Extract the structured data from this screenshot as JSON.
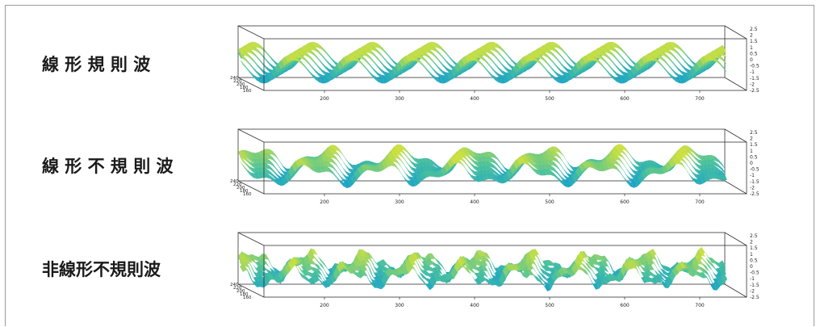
{
  "figure": {
    "panels": [
      {
        "label": "線 形 規 則 波",
        "x_ticks": [
          "200",
          "300",
          "400",
          "500",
          "600",
          "700"
        ],
        "z_ticks": [
          "2.5",
          "2",
          "1.5",
          "1",
          "0.5",
          "0",
          "-0.5",
          "-1",
          "-1.5",
          "-2",
          "-2.5"
        ],
        "y_ticks": [
          "240",
          "220",
          "200",
          "180",
          "160"
        ]
      },
      {
        "label": "線 形 不 規 則 波",
        "x_ticks": [
          "200",
          "300",
          "400",
          "500",
          "600",
          "700"
        ],
        "z_ticks": [
          "2.5",
          "2",
          "1.5",
          "1",
          "0.5",
          "0",
          "-0.5",
          "-1",
          "-1.5",
          "-2",
          "-2.5"
        ],
        "y_ticks": [
          "240",
          "220",
          "200",
          "180",
          "160"
        ]
      },
      {
        "label": "非線形不規則波",
        "x_ticks": [
          "200",
          "300",
          "400",
          "500",
          "600",
          "700"
        ],
        "z_ticks": [
          "2.5",
          "2",
          "1.5",
          "1",
          "0.5",
          "0",
          "-0.5",
          "-1",
          "-1.5",
          "-2",
          "-2.5"
        ],
        "y_ticks": [
          "240",
          "220",
          "200",
          "180",
          "160"
        ]
      }
    ],
    "colors": {
      "crest": "#d6e23a",
      "mid": "#4cc29a",
      "trough": "#1aa3c8",
      "axis": "#333333"
    }
  }
}
